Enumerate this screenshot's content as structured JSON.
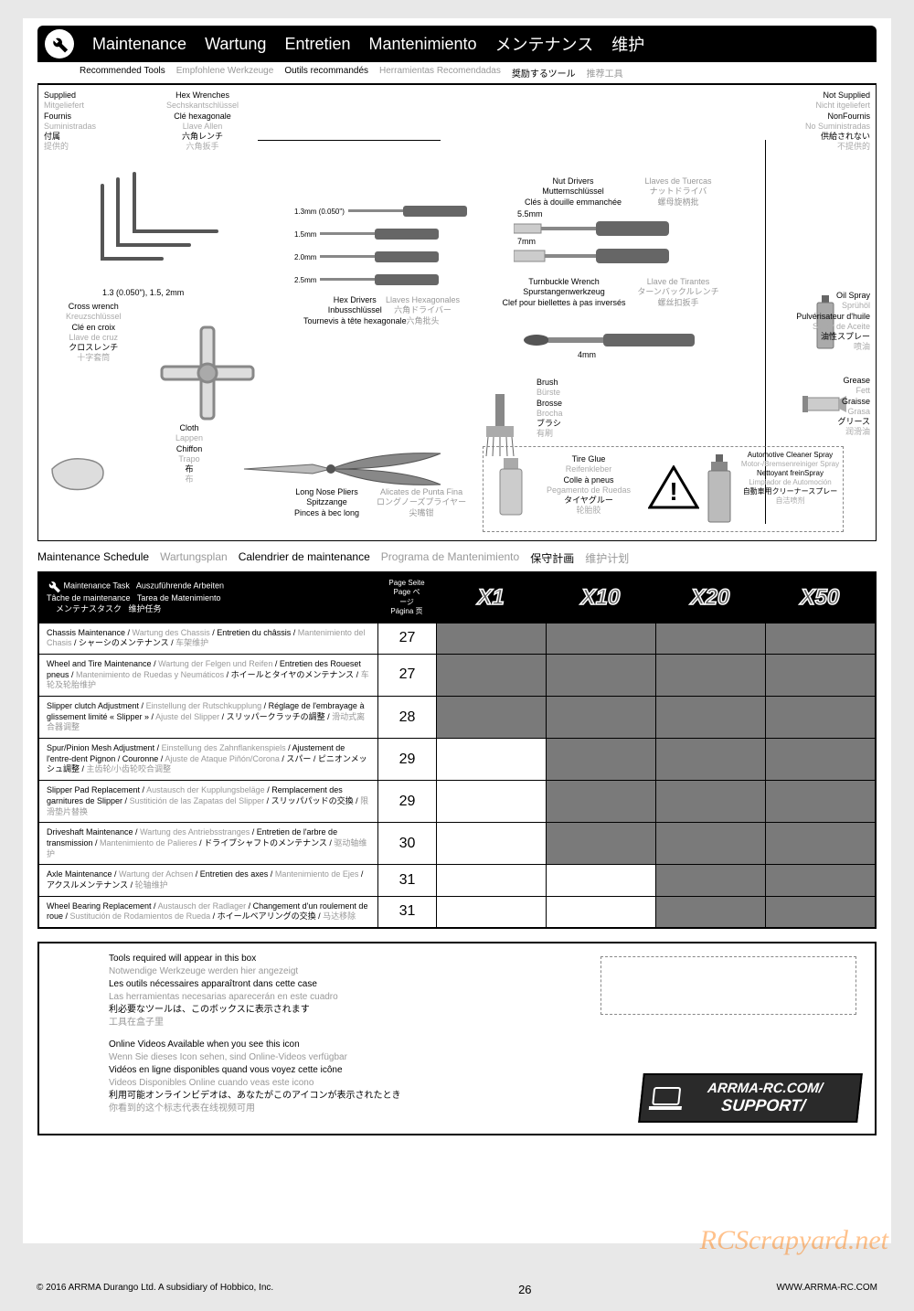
{
  "header": {
    "titles": [
      "Maintenance",
      "Wartung",
      "Entretien",
      "Mantenimiento",
      "メンテナンス",
      "维护"
    ]
  },
  "subheader": {
    "items": [
      {
        "t": "Recommended Tools",
        "g": false
      },
      {
        "t": "Empfohlene Werkzeuge",
        "g": true
      },
      {
        "t": "Outils recommandés",
        "g": false
      },
      {
        "t": "Herramientas Recomendadas",
        "g": true
      },
      {
        "t": "奨励するツール",
        "g": false
      },
      {
        "t": "推荐工具",
        "g": true
      }
    ]
  },
  "tools": {
    "supplied": [
      "Supplied",
      "Mitgeliefert",
      "Fournis",
      "Suministradas",
      "付属",
      "提供的"
    ],
    "supplied_gray": [
      false,
      true,
      false,
      true,
      false,
      true
    ],
    "not_supplied": [
      "Not Supplied",
      "Nicht itgeliefert",
      "NonFournis",
      "No Suministradas",
      "供給されない",
      "不提供的"
    ],
    "not_supplied_gray": [
      false,
      true,
      false,
      true,
      false,
      true
    ],
    "hex_wrenches": [
      "Hex Wrenches",
      "Sechskantschlüssel",
      "Clé hexagonale",
      "Llave Allen",
      "六角レンチ",
      "六角扳手"
    ],
    "hex_gray": [
      false,
      true,
      false,
      true,
      false,
      true
    ],
    "hex_sizes": "1.3 (0.050\"), 1.5, 2mm",
    "cross_wrench": [
      "Cross wrench",
      "Kreuzschlüssel",
      "Clé en croix",
      "Llave de cruz",
      "クロスレンチ",
      "十字套筒"
    ],
    "cross_gray": [
      false,
      true,
      false,
      true,
      false,
      true
    ],
    "cloth": [
      "Cloth",
      "Lappen",
      "Chiffon",
      "Trapo",
      "布",
      "布"
    ],
    "cloth_gray": [
      false,
      true,
      false,
      true,
      false,
      true
    ],
    "driver_sizes": [
      "1.3mm (0.050\")",
      "1.5mm",
      "2.0mm",
      "2.5mm"
    ],
    "hex_drivers": [
      "Hex Drivers",
      "Inbusschlüssel",
      "Tournevis à tête hexagonale"
    ],
    "hex_drivers2": [
      "Llaves Hexagonales",
      "六角ドライバー",
      "六角批头"
    ],
    "pliers": [
      "Long Nose Pliers",
      "Spitzzange",
      "Pinces à bec long"
    ],
    "pliers2": [
      "Alicates de Punta Fina",
      "ロングノーズプライヤー",
      "尖嘴钳"
    ],
    "nut_drivers": [
      "Nut Drivers",
      "Mutternschlüssel",
      "Clés à douille emmanchée"
    ],
    "nut_drivers2": [
      "Llaves de Tuercas",
      "ナットドライバ",
      "螺母旋柄批"
    ],
    "nut_sizes": [
      "5.5mm",
      "7mm"
    ],
    "turnbuckle": [
      "Turnbuckle Wrench",
      "Spurstangenwerkzeug",
      "Clef pour biellettes à pas inversés"
    ],
    "turnbuckle2": [
      "Llave de Tirantes",
      "ターンバックルレンチ",
      "螺丝扣扳手"
    ],
    "turnbuckle_size": "4mm",
    "brush": [
      "Brush",
      "Bürste",
      "Brosse",
      "Brocha",
      "ブラシ",
      "有刷"
    ],
    "brush_gray": [
      false,
      true,
      false,
      true,
      false,
      true
    ],
    "tire_glue": [
      "Tire Glue",
      "Reifenkleber",
      "Colle à pneus",
      "Pegamento de Ruedas",
      "タイヤグルー",
      "轮胎胶"
    ],
    "glue_gray": [
      false,
      true,
      false,
      true,
      false,
      true
    ],
    "oil": [
      "Oil Spray",
      "Sprühöl",
      "Pulvérisateur d'huile",
      "Spray de Aceite",
      "油性スプレー",
      "喷油"
    ],
    "oil_gray": [
      false,
      true,
      false,
      true,
      false,
      true
    ],
    "grease": [
      "Grease",
      "Fett",
      "Graisse",
      "Grasa",
      "グリース",
      "润滑油"
    ],
    "grease_gray": [
      false,
      true,
      false,
      true,
      false,
      true
    ],
    "cleaner": [
      "Automotive Cleaner Spray",
      "Motor-/Bremsenreiniger Spray",
      "Nettoyant freinSpray",
      "Limpiador de Automoción",
      "自動車用クリーナースプレー",
      "自洁喷剂"
    ],
    "cleaner_gray": [
      false,
      true,
      false,
      true,
      false,
      true
    ]
  },
  "schedule": {
    "title": [
      {
        "t": "Maintenance Schedule",
        "g": false
      },
      {
        "t": "Wartungsplan",
        "g": true
      },
      {
        "t": "Calendrier de maintenance",
        "g": false
      },
      {
        "t": "Programa de Mantenimiento",
        "g": true
      },
      {
        "t": "保守計画",
        "g": false
      },
      {
        "t": "维护计划",
        "g": true
      }
    ],
    "task_h": [
      "Maintenance Task",
      "Auszuführende Arbeiten",
      "Tâche de maintenance",
      "Tarea de Matenimiento",
      "メンテナスタスク",
      "维护任务"
    ],
    "page_h": [
      "Page Seite",
      "Page    ペ",
      "ージ",
      "Página 页"
    ],
    "xcols": [
      "X1",
      "X10",
      "X20",
      "X50"
    ],
    "rows": [
      {
        "task": "Chassis Maintenance / <g>Wartung des Chassis</g> / Entretien du châssis / <g>Mantenimiento del Chasis</g> / シャーシのメンテナンス / <g>车架维护</g>",
        "page": "27",
        "fill": [
          1,
          1,
          1,
          1
        ]
      },
      {
        "task": "Wheel and Tire Maintenance / <g>Wartung der Felgen und Reifen</g> / Entretien des Roueset pneus / <g>Mantenimiento de Ruedas y Neumáticos</g> / ホイールとタイヤのメンテナンス / <g>车轮及轮胎维护</g>",
        "page": "27",
        "fill": [
          1,
          1,
          1,
          1
        ]
      },
      {
        "task": "Slipper clutch Adjustment / <g>Einstellung der Rutschkupplung</g> / Réglage de l'embrayage à glissement limité « Slipper » / <g>Ajuste del Slipper</g> / スリッパークラッチの調整 / <g>滑动式离合器调整</g>",
        "page": "28",
        "fill": [
          1,
          1,
          1,
          1
        ]
      },
      {
        "task": "Spur/Pinion Mesh Adjustment / <g>Einstellung des Zahnflankenspiels</g> / Ajustement de l'entre-dent Pignon / Couronne / <g>Ajuste de Ataque Piñón/Corona</g> / スパー / ピニオンメッシュ調整 / <g>主齿轮/小齿轮咬合调整</g>",
        "page": "29",
        "fill": [
          0,
          1,
          1,
          1
        ]
      },
      {
        "task": "Slipper Pad Replacement / <g>Austausch der Kupplungsbeläge</g> / Remplacement des garnitures de Slipper / <g>Sustitición de las Zapatas del Slipper</g> / スリッパパッドの交換 / <g>限滑垫片替换</g>",
        "page": "29",
        "fill": [
          0,
          1,
          1,
          1
        ]
      },
      {
        "task": "Driveshaft Maintenance / <g>Wartung des Antriebsstranges</g> / Entretien de l'arbre de transmission / <g>Mantenimiento de Palieres</g> / ドライブシャフトのメンテナンス / <g>驱动轴维护</g>",
        "page": "30",
        "fill": [
          0,
          1,
          1,
          1
        ]
      },
      {
        "task": "Axle Maintenance / <g>Wartung der Achsen</g> / Entretien des axes / <g>Mantenimiento de Ejes</g> / アクスルメンテナンス / <g>轮轴维护</g>",
        "page": "31",
        "fill": [
          0,
          0,
          1,
          1
        ]
      },
      {
        "task": "Wheel Bearing Replacement / <g>Austausch der Radlager</g> / Changement d'un roulement de roue / <g>Sustitución de Rodamientos de Rueda</g> / ホイールベアリングの交換 / <g>马达移除</g>",
        "page": "31",
        "fill": [
          0,
          0,
          1,
          1
        ]
      }
    ]
  },
  "info": {
    "tools_box": [
      {
        "t": "Tools required will appear in this box",
        "g": false
      },
      {
        "t": "Notwendige Werkzeuge werden hier angezeigt",
        "g": true
      },
      {
        "t": "Les outils nécessaires apparaîtront  dans cette case",
        "g": false
      },
      {
        "t": "Las herramientas necesarias aparecerán en este cuadro",
        "g": true
      },
      {
        "t": "利必要なツールは、このボックスに表示されます",
        "g": false
      },
      {
        "t": "工具在盒子里",
        "g": true
      }
    ],
    "video": [
      {
        "t": "Online Videos Available when you see this icon",
        "g": false
      },
      {
        "t": "Wenn Sie dieses Icon sehen, sind Online-Videos verfügbar",
        "g": true
      },
      {
        "t": "Vidéos en ligne disponibles quand vous voyez cette icône",
        "g": false
      },
      {
        "t": "Videos Disponibles Online cuando veas este icono",
        "g": true
      },
      {
        "t": "利用可能オンラインビデオは、あなたがこのアイコンが表示されたとき",
        "g": false
      },
      {
        "t": "你看到的这个标志代表在线视频可用",
        "g": true
      }
    ],
    "support": [
      "ARRMA-RC.COM/",
      "SUPPORT/"
    ]
  },
  "footer": {
    "copyright": "© 2016 ARRMA Durango Ltd. A subsidiary of Hobbico, Inc.",
    "page": "26",
    "url": "WWW.ARRMA-RC.COM"
  },
  "watermark": "RCScrapyard.net"
}
